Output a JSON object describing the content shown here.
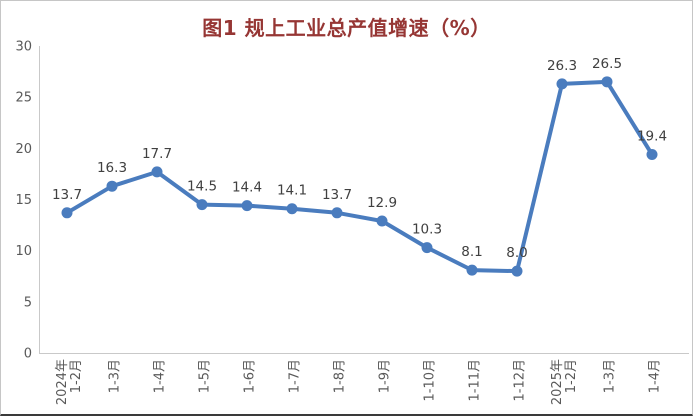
{
  "title": "图1 规上工业总产值增速（%）",
  "colors": {
    "line": "#4a7cbe",
    "marker": "#4a7cbe",
    "title": "#963634",
    "data_label": "#404040",
    "axis_label": "#595959",
    "axis_line": "#c9c9c9"
  },
  "chart_data": {
    "type": "line",
    "title": "图1 规上工业总产值增速（%）",
    "categories": [
      "2024年\n1-2月",
      "1-3月",
      "1-4月",
      "1-5月",
      "1-6月",
      "1-7月",
      "1-8月",
      "1-9月",
      "1-10月",
      "1-11月",
      "1-12月",
      "2025年\n1-2月",
      "1-3月",
      "1-4月"
    ],
    "values": [
      13.7,
      16.3,
      17.7,
      14.5,
      14.4,
      14.1,
      13.7,
      12.9,
      10.3,
      8.1,
      8.0,
      26.3,
      26.5,
      19.4
    ],
    "xlabel": "",
    "ylabel": "",
    "ylim": [
      0,
      30
    ],
    "yticks": [
      0,
      5,
      10,
      15,
      20,
      25,
      30
    ],
    "grid": false,
    "legend": "none",
    "data_labels": true,
    "marker": "circle",
    "x_tick_rotation": -90
  }
}
